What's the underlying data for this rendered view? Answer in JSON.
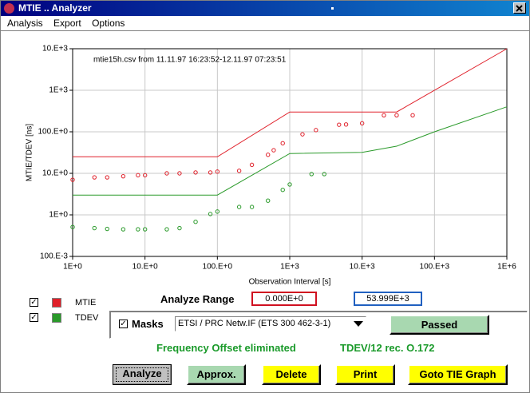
{
  "window": {
    "title": "MTIE .. Analyzer",
    "menu": [
      "Analysis",
      "Export",
      "Options"
    ]
  },
  "chart_data": {
    "type": "scatter",
    "annotation": "mtie15h.csv from 11.11.97 16:23:52-12.11.97 07:23:51",
    "xlabel": "Observation Interval [s]",
    "ylabel": "MTIE/TDEV [ns]",
    "xscale": "log",
    "yscale": "log",
    "grid": true,
    "xlim": [
      1,
      1000000
    ],
    "ylim": [
      0.1,
      10000
    ],
    "xticks": [
      {
        "value": 1,
        "label": "1E+0"
      },
      {
        "value": 10,
        "label": "10.E+0"
      },
      {
        "value": 100,
        "label": "100.E+0"
      },
      {
        "value": 1000,
        "label": "1E+3"
      },
      {
        "value": 10000,
        "label": "10.E+3"
      },
      {
        "value": 100000,
        "label": "100.E+3"
      },
      {
        "value": 1000000,
        "label": "1E+6"
      }
    ],
    "yticks": [
      {
        "value": 0.1,
        "label": "100.E-3"
      },
      {
        "value": 1,
        "label": "1E+0"
      },
      {
        "value": 10,
        "label": "10.E+0"
      },
      {
        "value": 100,
        "label": "100.E+0"
      },
      {
        "value": 1000,
        "label": "1E+3"
      },
      {
        "value": 10000,
        "label": "10.E+3"
      }
    ],
    "series": [
      {
        "name": "MTIE",
        "color": "#e0202a",
        "x": [
          1,
          2,
          3,
          5,
          8,
          10,
          20,
          30,
          50,
          80,
          100,
          200,
          300,
          500,
          600,
          800,
          1500,
          2300,
          4800,
          6000,
          10000,
          20000,
          30000,
          50000
        ],
        "values": [
          7,
          8,
          8,
          8.5,
          9,
          9,
          10,
          10,
          10.5,
          10.5,
          11,
          11.5,
          16,
          28,
          36,
          53,
          87,
          110,
          148,
          150,
          160,
          250,
          250,
          250
        ],
        "mask_x": [
          1,
          100,
          1000,
          30000,
          1000000
        ],
        "mask": [
          25,
          25,
          300,
          300,
          10000
        ]
      },
      {
        "name": "TDEV",
        "color": "#2a9a2a",
        "x": [
          1,
          2,
          3,
          5,
          8,
          10,
          20,
          30,
          50,
          80,
          100,
          200,
          300,
          500,
          800,
          1000,
          2000,
          3000
        ],
        "values": [
          0.51,
          0.48,
          0.46,
          0.45,
          0.45,
          0.45,
          0.45,
          0.48,
          0.68,
          1.05,
          1.2,
          1.55,
          1.55,
          2.2,
          4,
          5.4,
          9.6,
          9.6
        ],
        "mask_x": [
          1,
          100,
          1000,
          10000,
          30000,
          100000,
          1000000
        ],
        "mask": [
          3,
          3,
          30,
          32,
          45,
          100,
          400
        ]
      }
    ]
  },
  "controls": {
    "analyze_range_label": "Analyze Range",
    "range_start": "0.000E+0",
    "range_end": "53.999E+3",
    "masks_label": "Masks",
    "mask_selection": "ETSI / PRC Netw.IF (ETS 300 462-3-1)",
    "result": "Passed",
    "status_left": "Frequency Offset eliminated",
    "status_right": "TDEV/12 rec. O.172",
    "buttons": [
      "Analyze",
      "Approx.",
      "Delete",
      "Print",
      "Goto TIE Graph"
    ]
  }
}
